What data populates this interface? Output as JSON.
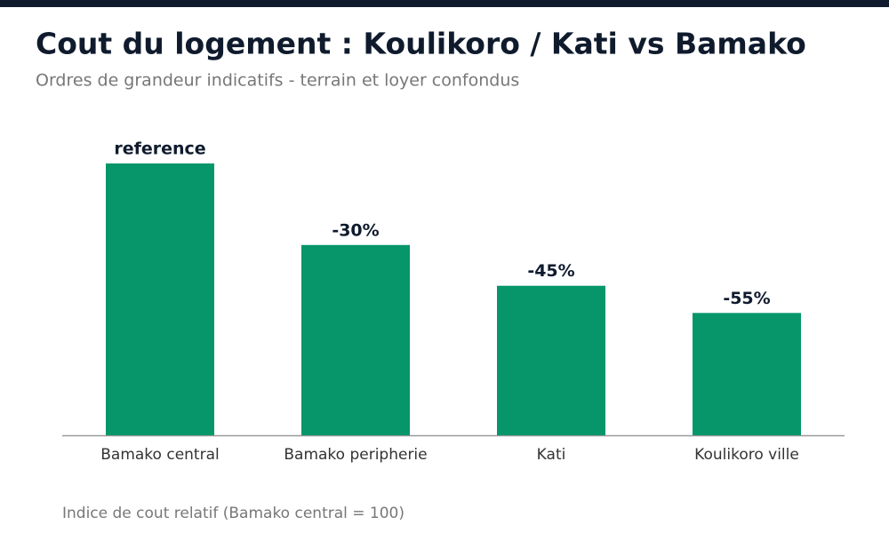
{
  "chart_data": {
    "type": "bar",
    "title": "Cout du logement : Koulikoro / Kati vs Bamako",
    "subtitle": "Ordres de grandeur indicatifs - terrain et loyer confondus",
    "categories": [
      "Bamako central",
      "Bamako peripherie",
      "Kati",
      "Koulikoro ville"
    ],
    "values": [
      100,
      70,
      55,
      45
    ],
    "bar_labels": [
      "reference",
      "-30%",
      "-45%",
      "-55%"
    ],
    "caption": "Indice de cout relatif (Bamako central = 100)",
    "color": "#06966a",
    "ylim": [
      0,
      100
    ]
  }
}
